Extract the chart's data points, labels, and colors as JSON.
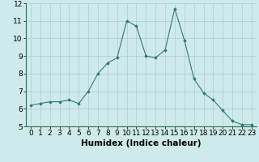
{
  "x": [
    0,
    1,
    2,
    3,
    4,
    5,
    6,
    7,
    8,
    9,
    10,
    11,
    12,
    13,
    14,
    15,
    16,
    17,
    18,
    19,
    20,
    21,
    22,
    23
  ],
  "y": [
    6.2,
    6.3,
    6.4,
    6.4,
    6.5,
    6.3,
    7.0,
    8.0,
    8.6,
    8.9,
    11.0,
    10.7,
    9.0,
    8.9,
    9.35,
    11.7,
    9.9,
    7.7,
    6.9,
    6.5,
    5.9,
    5.3,
    5.1,
    5.1
  ],
  "line_color": "#2e7d6e",
  "marker": "D",
  "marker_size": 1.8,
  "bg_color": "#ceeaea",
  "grid_color": "#b0cccc",
  "xlabel": "Humidex (Indice chaleur)",
  "xlabel_fontsize": 7.5,
  "tick_fontsize": 6.5,
  "ylim": [
    5,
    12
  ],
  "xlim": [
    -0.5,
    23.5
  ],
  "yticks": [
    5,
    6,
    7,
    8,
    9,
    10,
    11,
    12
  ],
  "xticks": [
    0,
    1,
    2,
    3,
    4,
    5,
    6,
    7,
    8,
    9,
    10,
    11,
    12,
    13,
    14,
    15,
    16,
    17,
    18,
    19,
    20,
    21,
    22,
    23
  ]
}
